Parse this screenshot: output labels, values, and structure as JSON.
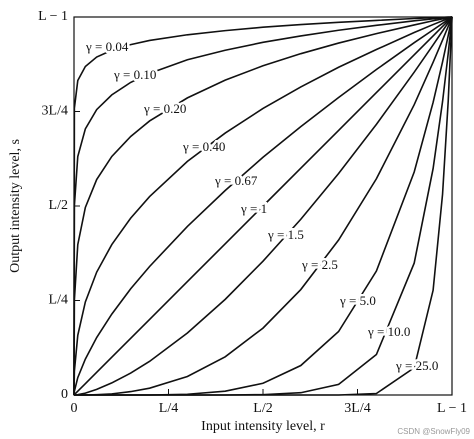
{
  "chart_data": {
    "type": "line",
    "xlabel": "Input intensity level, r",
    "ylabel": "Output intensity level, s",
    "watermark": "CSDN @SnowFly09",
    "color": "#111111",
    "xlim": [
      0,
      1
    ],
    "ylim": [
      0,
      1
    ],
    "xticks": [
      {
        "value": 0,
        "label": "0"
      },
      {
        "value": 0.25,
        "label": "L/4"
      },
      {
        "value": 0.5,
        "label": "L/2"
      },
      {
        "value": 0.75,
        "label": "3L/4"
      },
      {
        "value": 1,
        "label": "L − 1"
      }
    ],
    "yticks": [
      {
        "value": 0,
        "label": "0"
      },
      {
        "value": 0.25,
        "label": "L/4"
      },
      {
        "value": 0.5,
        "label": "L/2"
      },
      {
        "value": 0.75,
        "label": "3L/4"
      },
      {
        "value": 1,
        "label": "L − 1"
      }
    ],
    "x": [
      0,
      0.001,
      0.01,
      0.03,
      0.06,
      0.1,
      0.15,
      0.2,
      0.3,
      0.4,
      0.5,
      0.6,
      0.7,
      0.8,
      0.9,
      0.95,
      0.975,
      0.99,
      1
    ],
    "series": [
      {
        "name": "γ = 0.04",
        "values": [
          0,
          0.759,
          0.832,
          0.869,
          0.894,
          0.912,
          0.927,
          0.938,
          0.953,
          0.964,
          0.973,
          0.98,
          0.986,
          0.991,
          0.996,
          0.998,
          0.999,
          1,
          1
        ]
      },
      {
        "name": "γ = 0.10",
        "values": [
          0,
          0.501,
          0.631,
          0.704,
          0.755,
          0.794,
          0.827,
          0.851,
          0.887,
          0.912,
          0.933,
          0.95,
          0.965,
          0.978,
          0.99,
          0.995,
          0.997,
          0.999,
          1
        ]
      },
      {
        "name": "γ = 0.20",
        "values": [
          0,
          0.251,
          0.398,
          0.496,
          0.57,
          0.631,
          0.684,
          0.725,
          0.786,
          0.833,
          0.871,
          0.903,
          0.931,
          0.956,
          0.979,
          0.99,
          0.995,
          0.998,
          1
        ]
      },
      {
        "name": "γ = 0.40",
        "values": [
          0,
          0.063,
          0.158,
          0.246,
          0.325,
          0.398,
          0.468,
          0.525,
          0.618,
          0.693,
          0.758,
          0.815,
          0.867,
          0.914,
          0.959,
          0.98,
          0.99,
          0.996,
          1
        ]
      },
      {
        "name": "γ = 0.67",
        "values": [
          0,
          0.01,
          0.046,
          0.095,
          0.152,
          0.214,
          0.281,
          0.34,
          0.446,
          0.541,
          0.629,
          0.71,
          0.787,
          0.861,
          0.932,
          0.966,
          0.983,
          0.993,
          1
        ]
      },
      {
        "name": "γ = 1",
        "values": [
          0,
          0.001,
          0.01,
          0.03,
          0.06,
          0.1,
          0.15,
          0.2,
          0.3,
          0.4,
          0.5,
          0.6,
          0.7,
          0.8,
          0.9,
          0.95,
          0.975,
          0.99,
          1
        ]
      },
      {
        "name": "γ = 1.5",
        "values": [
          0,
          0,
          0.001,
          0.005,
          0.015,
          0.032,
          0.058,
          0.089,
          0.164,
          0.253,
          0.354,
          0.465,
          0.586,
          0.716,
          0.854,
          0.926,
          0.963,
          0.985,
          1
        ]
      },
      {
        "name": "γ = 2.5",
        "values": [
          0,
          0,
          0,
          0,
          0.001,
          0.003,
          0.009,
          0.018,
          0.049,
          0.101,
          0.177,
          0.279,
          0.41,
          0.572,
          0.768,
          0.88,
          0.939,
          0.975,
          1
        ]
      },
      {
        "name": "γ = 5.0",
        "values": [
          0,
          0,
          0,
          0,
          0,
          0,
          0,
          0,
          0.002,
          0.01,
          0.031,
          0.078,
          0.168,
          0.328,
          0.59,
          0.774,
          0.881,
          0.951,
          1
        ]
      },
      {
        "name": "γ = 10.0",
        "values": [
          0,
          0,
          0,
          0,
          0,
          0,
          0,
          0,
          0,
          0,
          0.001,
          0.006,
          0.028,
          0.107,
          0.349,
          0.599,
          0.776,
          0.904,
          1
        ]
      },
      {
        "name": "γ = 25.0",
        "values": [
          0,
          0,
          0,
          0,
          0,
          0,
          0,
          0,
          0,
          0,
          0,
          0,
          0,
          0.004,
          0.072,
          0.277,
          0.531,
          0.778,
          1
        ]
      }
    ]
  }
}
